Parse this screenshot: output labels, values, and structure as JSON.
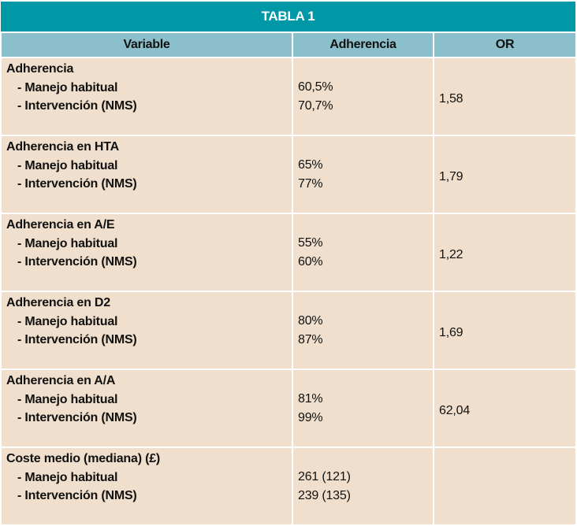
{
  "title": "TABLA 1",
  "headers": {
    "variable": "Variable",
    "adherencia": "Adherencia",
    "or": "OR"
  },
  "rows": [
    {
      "label": "Adherencia",
      "sub1": "- Manejo habitual",
      "sub2": "- Intervención (NMS)",
      "v1": "60,5%",
      "v2": "70,7%",
      "or": "1,58"
    },
    {
      "label": "Adherencia en HTA",
      "sub1": "- Manejo habitual",
      "sub2": "- Intervención (NMS)",
      "v1": "65%",
      "v2": "77%",
      "or": "1,79"
    },
    {
      "label": "Adherencia en A/E",
      "sub1": "- Manejo habitual",
      "sub2": "- Intervención (NMS)",
      "v1": "55%",
      "v2": "60%",
      "or": "1,22"
    },
    {
      "label": "Adherencia en D2",
      "sub1": "- Manejo habitual",
      "sub2": "- Intervención (NMS)",
      "v1": "80%",
      "v2": "87%",
      "or": "1,69"
    },
    {
      "label": "Adherencia en A/A",
      "sub1": "- Manejo habitual",
      "sub2": "- Intervención (NMS)",
      "v1": "81%",
      "v2": "99%",
      "or": "62,04"
    },
    {
      "label": "Coste medio (mediana) (£)",
      "sub1": "- Manejo habitual",
      "sub2": "- Intervención (NMS)",
      "v1": "261 (121)",
      "v2": "239 (135)",
      "or": ""
    }
  ],
  "colors": {
    "title_bg": "#0097a7",
    "header_bg": "#8bbfcc",
    "cell_bg": "#efdfcc"
  }
}
